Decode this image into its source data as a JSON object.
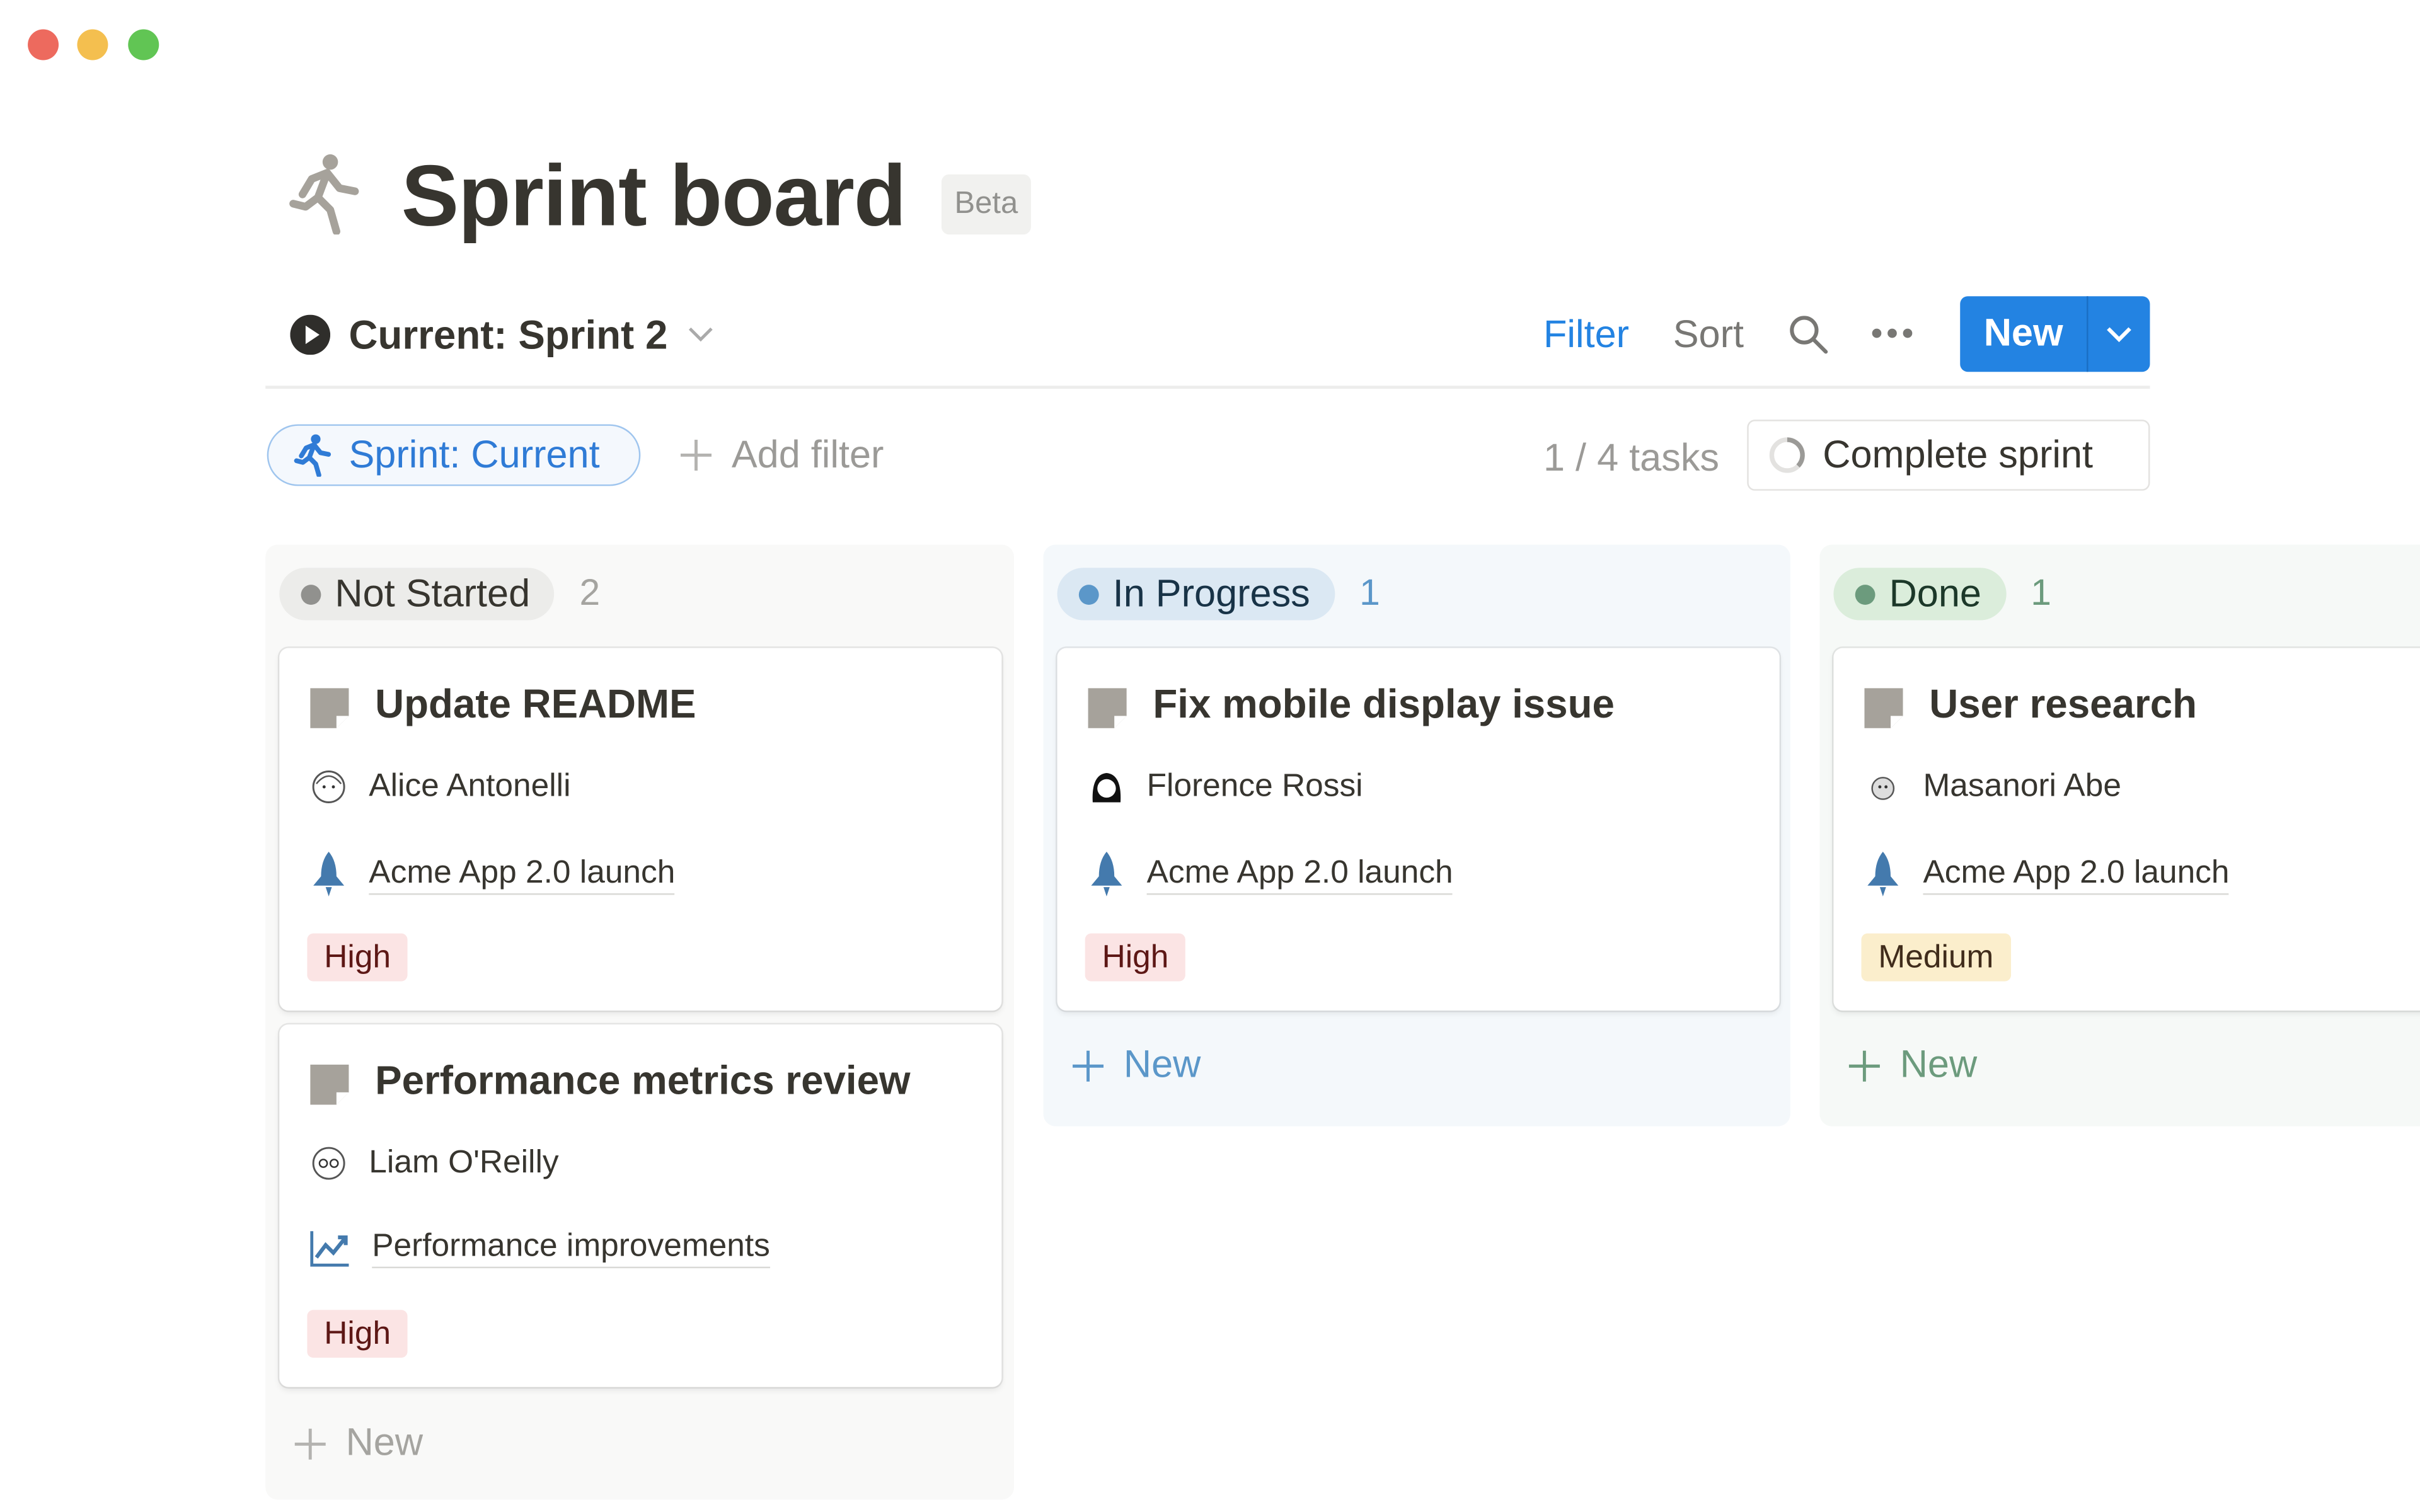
{
  "window": {
    "controls": [
      "close",
      "minimize",
      "maximize"
    ]
  },
  "header": {
    "title": "Sprint board",
    "badge": "Beta",
    "icon": "runner-icon"
  },
  "toolbar": {
    "sprint_select": "Current: Sprint 2",
    "filter": "Filter",
    "sort": "Sort",
    "new": "New"
  },
  "filters": {
    "active_chip": "Sprint: Current",
    "add_filter": "Add filter",
    "task_count": "1 / 4 tasks",
    "complete_sprint": "Complete sprint"
  },
  "colors": {
    "accent": "#2383e2",
    "high_bg": "#fbe4e4",
    "high_text": "#5d1715",
    "medium_bg": "#fbeecc",
    "medium_text": "#402c1b"
  },
  "columns": [
    {
      "name": "Not Started",
      "count": "2",
      "add_label": "New",
      "cards": [
        {
          "title": "Update README",
          "assignee": "Alice Antonelli",
          "project": "Acme App 2.0 launch",
          "project_icon": "rocket-icon",
          "priority": "High"
        },
        {
          "title": "Performance metrics review",
          "assignee": "Liam O'Reilly",
          "project": "Performance improvements",
          "project_icon": "chart-icon",
          "priority": "High"
        }
      ]
    },
    {
      "name": "In Progress",
      "count": "1",
      "add_label": "New",
      "cards": [
        {
          "title": "Fix mobile display issue",
          "assignee": "Florence Rossi",
          "project": "Acme App 2.0 launch",
          "project_icon": "rocket-icon",
          "priority": "High"
        }
      ]
    },
    {
      "name": "Done",
      "count": "1",
      "add_label": "New",
      "cards": [
        {
          "title": "User research",
          "assignee": "Masanori Abe",
          "project": "Acme App 2.0 launch",
          "project_icon": "rocket-icon",
          "priority": "Medium"
        }
      ]
    }
  ]
}
